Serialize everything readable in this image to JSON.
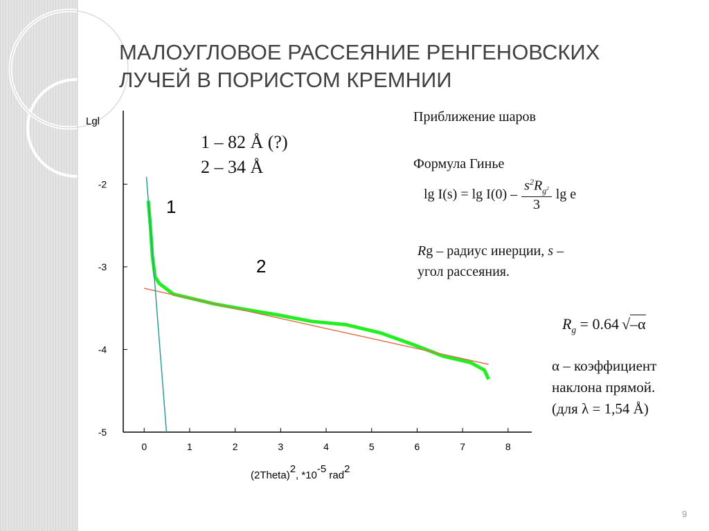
{
  "slide": {
    "title_lines": [
      "МАЛОУГЛОВОЕ РАССЕЯНИЕ РЕНГЕНОВСКИХ",
      "ЛУЧЕЙ В ПОРИСТОМ КРЕМНИИ"
    ],
    "sizes": [
      "1 – 82 Å (?)",
      "2 – 34 Å"
    ],
    "approx": "Приближение шаров",
    "formula_name": "Формула Гинье",
    "guinier": {
      "left": "lg I(s) = lg I(0) –",
      "num": [
        "s",
        "2",
        "R",
        "g",
        "2"
      ],
      "den": "3",
      "right": "lg e"
    },
    "rg_note": [
      "R",
      "g",
      " – радиус инерции, ",
      "s",
      " –",
      "угол рассеяния."
    ],
    "rg_formula": [
      "R",
      "g",
      "= 0.64",
      "–α"
    ],
    "alpha_note": [
      "α – коэффициент",
      "наклона прямой.",
      "(для λ = 1,54 Å)"
    ],
    "page_number": "9"
  },
  "chart_data": {
    "type": "line",
    "y_label": "Lgl",
    "x_label": [
      "(2Theta)",
      "2",
      ", *10",
      "-5",
      " rad",
      "2"
    ],
    "annotations": [
      "1",
      "2"
    ],
    "xlim": [
      -0.46,
      8.52
    ],
    "ylim": [
      -5,
      -1.11
    ],
    "xticks": [
      0,
      1,
      2,
      3,
      4,
      5,
      6,
      7,
      8
    ],
    "yticks": [
      -5,
      -4,
      -3,
      -2
    ],
    "series": [
      {
        "color": "#22ee22",
        "width": 5,
        "x": [
          0.09,
          0.14,
          0.18,
          0.24,
          0.33,
          0.64,
          1.1,
          1.55,
          2.16,
          2.92,
          3.68,
          4.44,
          5.2,
          5.96,
          6.57,
          7.18,
          7.48,
          7.57
        ],
        "values": [
          -2.2,
          -2.53,
          -2.87,
          -3.12,
          -3.2,
          -3.33,
          -3.39,
          -3.45,
          -3.51,
          -3.58,
          -3.66,
          -3.7,
          -3.8,
          -3.95,
          -4.08,
          -4.16,
          -4.25,
          -4.36
        ]
      },
      {
        "color": "#e07050",
        "width": 1.5,
        "x": [
          0,
          7.57
        ],
        "values": [
          -3.26,
          -4.18
        ]
      },
      {
        "color": "#2a9d9d",
        "width": 1.5,
        "x": [
          0.05,
          0.49
        ],
        "values": [
          -1.91,
          -5
        ]
      }
    ]
  }
}
